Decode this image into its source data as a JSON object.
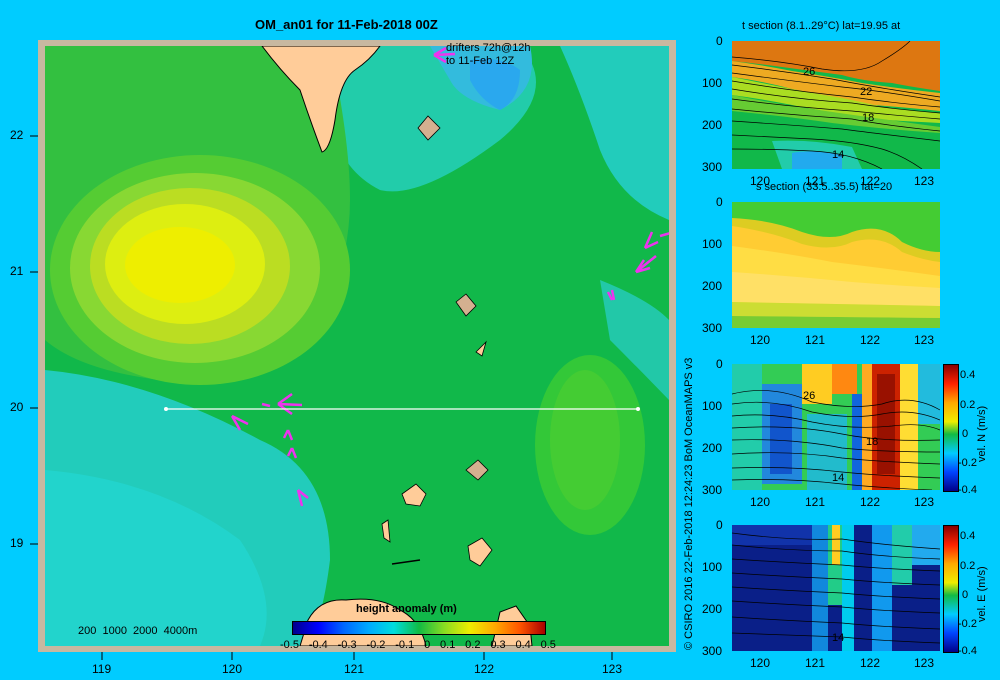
{
  "map": {
    "title": "OM_an01 for 11-Feb-2018 00Z",
    "drifter_note_line1": "drifters 72h@12h",
    "drifter_note_line2": "to 11-Feb 12Z",
    "depth_legend": "200  1000  2000  4000m",
    "x_ticks": [
      "119",
      "120",
      "121",
      "122",
      "123"
    ],
    "y_ticks": [
      "22",
      "21",
      "20",
      "19"
    ],
    "colorbar_title": "height anomaly (m)",
    "colorbar_ticks": [
      "-0.5",
      "-0.4",
      "-0.3",
      "-0.2",
      "-0.1",
      "0",
      "0.1",
      "0.2",
      "0.3",
      "0.4",
      "0.5"
    ],
    "section_line_lat": 20,
    "section_line_lon": [
      119.5,
      123.2
    ]
  },
  "credit": "© CSIRO 2016   22-Feb-2018 12:24:23 BoM OceanMAPS v3",
  "panels": [
    {
      "title": "t section (8.1..29°C) lat=19.95 at",
      "y_ticks": [
        "0",
        "100",
        "200",
        "300"
      ],
      "x_ticks": [
        "120",
        "121",
        "122",
        "123"
      ],
      "contour_labels": [
        "26",
        "22",
        "18",
        "14"
      ],
      "colorbar_label": "",
      "colorbar_ticks": []
    },
    {
      "title": "s section (33.5..35.5) lat=20",
      "y_ticks": [
        "0",
        "100",
        "200",
        "300"
      ],
      "x_ticks": [
        "120",
        "121",
        "122",
        "123"
      ],
      "contour_labels": [],
      "colorbar_label": "",
      "colorbar_ticks": []
    },
    {
      "title": "",
      "y_ticks": [
        "0",
        "100",
        "200",
        "300"
      ],
      "x_ticks": [
        "120",
        "121",
        "122",
        "123"
      ],
      "contour_labels": [
        "26",
        "18",
        "14"
      ],
      "colorbar_label": "vel. N (m/s)",
      "colorbar_ticks": [
        "0.4",
        "0.2",
        "0",
        "-0.2",
        "-0.4"
      ]
    },
    {
      "title": "",
      "y_ticks": [
        "0",
        "100",
        "200",
        "300"
      ],
      "x_ticks": [
        "120",
        "121",
        "122",
        "123"
      ],
      "contour_labels": [
        "14"
      ],
      "colorbar_label": "vel. E (m/s)",
      "colorbar_ticks": [
        "0.4",
        "0.2",
        "0",
        "-0.2",
        "-0.4"
      ]
    }
  ]
}
